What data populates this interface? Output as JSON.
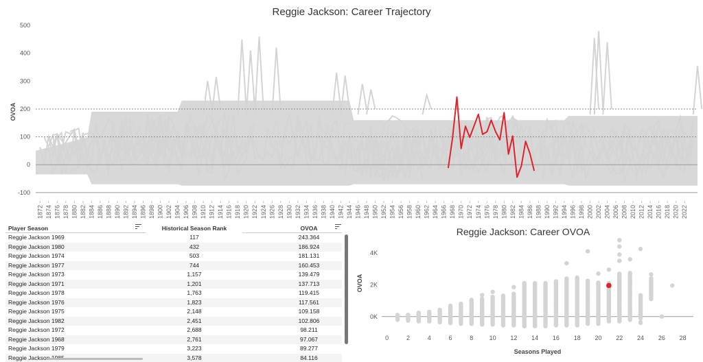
{
  "chart_data": [
    {
      "type": "line",
      "title": "Reggie Jackson: Career Trajectory",
      "ylabel": "OVOA",
      "xlabel": "",
      "ylim": [
        -130,
        510
      ],
      "xlim": [
        1871,
        2025
      ],
      "yticks": [
        500,
        400,
        300,
        200,
        100,
        0,
        -100
      ],
      "xticks": [
        1872,
        1874,
        1876,
        1878,
        1880,
        1882,
        1884,
        1886,
        1888,
        1890,
        1892,
        1894,
        1896,
        1898,
        1900,
        1902,
        1904,
        1906,
        1908,
        1910,
        1912,
        1914,
        1916,
        1918,
        1920,
        1922,
        1924,
        1926,
        1928,
        1930,
        1932,
        1934,
        1936,
        1938,
        1940,
        1942,
        1944,
        1946,
        1948,
        1950,
        1952,
        1954,
        1956,
        1958,
        1960,
        1962,
        1964,
        1966,
        1968,
        1970,
        1972,
        1974,
        1976,
        1978,
        1980,
        1982,
        1984,
        1986,
        1988,
        1990,
        1992,
        1994,
        1996,
        1998,
        2000,
        2002,
        2004,
        2006,
        2008,
        2010,
        2012,
        2014,
        2016,
        2018,
        2020,
        2022
      ],
      "reference_lines": [
        200,
        100,
        0,
        -100
      ],
      "highlight_color": "#e0212b",
      "background_color": "#d4d4d4",
      "series": [
        {
          "name": "Reggie Jackson",
          "x": [
            1967,
            1968,
            1969,
            1970,
            1971,
            1972,
            1973,
            1974,
            1975,
            1976,
            1977,
            1978,
            1979,
            1980,
            1981,
            1982,
            1983,
            1984,
            1985,
            1986,
            1987
          ],
          "y": [
            -12,
            97,
            243,
            58,
            138,
            98,
            139,
            181,
            109,
            118,
            160,
            119,
            89,
            187,
            38,
            103,
            -45,
            -5,
            84,
            40,
            -22
          ]
        }
      ]
    },
    {
      "type": "scatter",
      "title": "Reggie Jackson: Career OVOA",
      "xlabel": "Seasons Played",
      "ylabel": "OVOA",
      "xlim": [
        -0.5,
        29
      ],
      "ylim": [
        -700,
        4900
      ],
      "xticks": [
        0,
        2,
        4,
        6,
        8,
        10,
        12,
        14,
        16,
        18,
        20,
        22,
        24,
        26,
        28
      ],
      "yticks": [
        {
          "v": 4000,
          "label": "4K"
        },
        {
          "v": 2000,
          "label": "2K"
        },
        {
          "v": 0,
          "label": "0K"
        }
      ],
      "highlight_color": "#e0212b",
      "point_color": "#d4d4d4",
      "highlight": {
        "x": 21,
        "y": 1950
      },
      "ranges": [
        [
          1,
          -200,
          100
        ],
        [
          2,
          -250,
          150
        ],
        [
          3,
          -300,
          250
        ],
        [
          4,
          -300,
          350
        ],
        [
          5,
          -350,
          450
        ],
        [
          6,
          -400,
          700
        ],
        [
          7,
          -450,
          850
        ],
        [
          8,
          -450,
          1050
        ],
        [
          9,
          -500,
          1150
        ],
        [
          10,
          -500,
          1250
        ],
        [
          11,
          -550,
          1350
        ],
        [
          12,
          -550,
          1450
        ],
        [
          13,
          -600,
          2150
        ],
        [
          14,
          -600,
          2150
        ],
        [
          15,
          -600,
          2150
        ],
        [
          16,
          -550,
          2250
        ],
        [
          17,
          -550,
          2400
        ],
        [
          18,
          -550,
          2450
        ],
        [
          19,
          -450,
          2300
        ],
        [
          20,
          -450,
          2150
        ],
        [
          21,
          -300,
          2150
        ],
        [
          22,
          -250,
          2700
        ],
        [
          23,
          -200,
          2750
        ],
        [
          24,
          -100,
          1350
        ],
        [
          25,
          1100,
          2350
        ]
      ],
      "outliers": [
        [
          9,
          1350
        ],
        [
          10,
          1550
        ],
        [
          12,
          1850
        ],
        [
          17,
          3350
        ],
        [
          19,
          4100
        ],
        [
          20,
          2700
        ],
        [
          21,
          2950
        ],
        [
          22,
          3500
        ],
        [
          22,
          4800
        ],
        [
          22,
          4400
        ],
        [
          22,
          3900
        ],
        [
          23,
          3600
        ],
        [
          24,
          4250
        ],
        [
          24,
          -350
        ],
        [
          24,
          -400
        ],
        [
          25,
          2650
        ],
        [
          25,
          2400
        ],
        [
          26,
          0
        ],
        [
          27,
          1950
        ],
        [
          23,
          2050
        ],
        [
          22,
          -300
        ]
      ]
    }
  ],
  "table": {
    "headers": [
      "Player Season",
      "Historical Season Rank",
      "OVOA"
    ],
    "rows": [
      [
        "Reggie Jackson 1969",
        "117",
        "243.364"
      ],
      [
        "Reggie Jackson 1980",
        "432",
        "186.924"
      ],
      [
        "Reggie Jackson 1974",
        "503",
        "181.131"
      ],
      [
        "Reggie Jackson 1977",
        "744",
        "160.453"
      ],
      [
        "Reggie Jackson 1973",
        "1,157",
        "139.479"
      ],
      [
        "Reggie Jackson 1971",
        "1,201",
        "137.713"
      ],
      [
        "Reggie Jackson 1978",
        "1,763",
        "119.415"
      ],
      [
        "Reggie Jackson 1976",
        "1,823",
        "117.561"
      ],
      [
        "Reggie Jackson 1975",
        "2,148",
        "109.158"
      ],
      [
        "Reggie Jackson 1982",
        "2,451",
        "102.806"
      ],
      [
        "Reggie Jackson 1972",
        "2,688",
        "98.211"
      ],
      [
        "Reggie Jackson 1968",
        "2,761",
        "97.067"
      ],
      [
        "Reggie Jackson 1979",
        "3,223",
        "89.277"
      ],
      [
        "Reggie Jackson 1985",
        "3,578",
        "84.116"
      ]
    ]
  }
}
